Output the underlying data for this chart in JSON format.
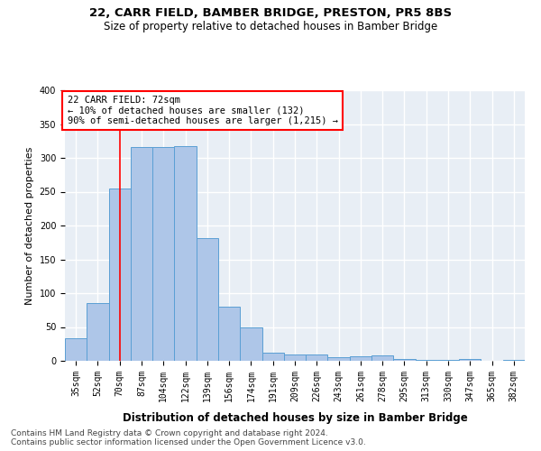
{
  "title": "22, CARR FIELD, BAMBER BRIDGE, PRESTON, PR5 8BS",
  "subtitle": "Size of property relative to detached houses in Bamber Bridge",
  "xlabel": "Distribution of detached houses by size in Bamber Bridge",
  "ylabel": "Number of detached properties",
  "footnote": "Contains HM Land Registry data © Crown copyright and database right 2024.\nContains public sector information licensed under the Open Government Licence v3.0.",
  "categories": [
    "35sqm",
    "52sqm",
    "70sqm",
    "87sqm",
    "104sqm",
    "122sqm",
    "139sqm",
    "156sqm",
    "174sqm",
    "191sqm",
    "209sqm",
    "226sqm",
    "243sqm",
    "261sqm",
    "278sqm",
    "295sqm",
    "313sqm",
    "330sqm",
    "347sqm",
    "365sqm",
    "382sqm"
  ],
  "values": [
    33,
    85,
    255,
    316,
    316,
    318,
    182,
    80,
    50,
    12,
    9,
    9,
    5,
    7,
    8,
    3,
    2,
    1,
    3,
    0,
    2
  ],
  "bar_color": "#aec6e8",
  "bar_edge_color": "#5a9fd4",
  "vline_x": 2,
  "vline_color": "red",
  "annotation_text": "22 CARR FIELD: 72sqm\n← 10% of detached houses are smaller (132)\n90% of semi-detached houses are larger (1,215) →",
  "annotation_box_color": "white",
  "annotation_box_edge_color": "red",
  "ylim": [
    0,
    400
  ],
  "yticks": [
    0,
    50,
    100,
    150,
    200,
    250,
    300,
    350,
    400
  ],
  "background_color": "#e8eef5",
  "grid_color": "white",
  "title_fontsize": 9.5,
  "subtitle_fontsize": 8.5,
  "axis_label_fontsize": 8,
  "tick_fontsize": 7,
  "annotation_fontsize": 7.5,
  "footnote_fontsize": 6.5
}
